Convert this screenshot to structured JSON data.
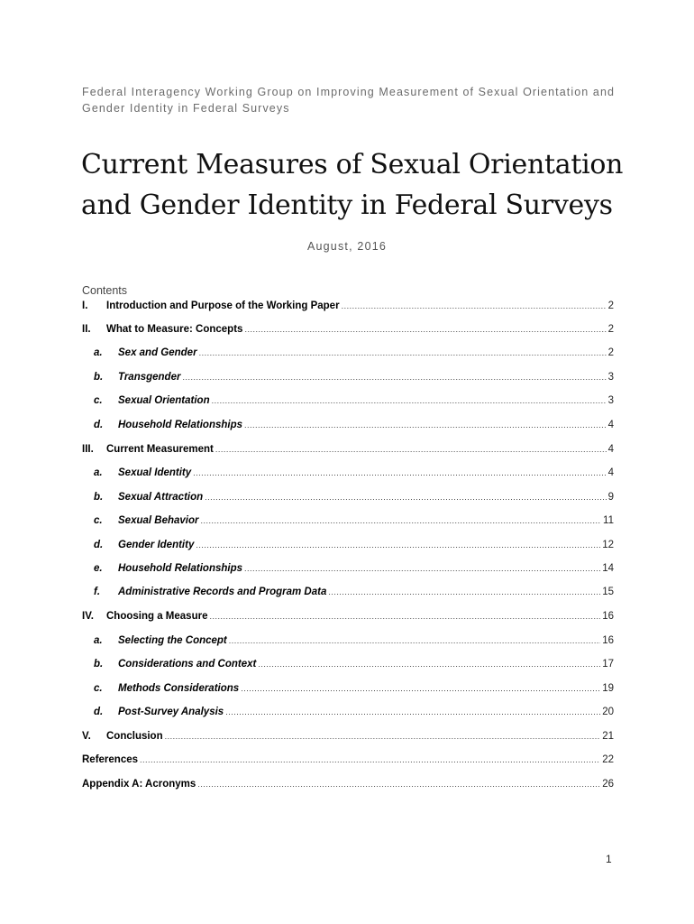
{
  "header": {
    "line1": "Federal Interagency Working Group on Improving Measurement of Sexual Orientation and",
    "line2": "Gender Identity in Federal Surveys"
  },
  "title": {
    "line1": "Current Measures of Sexual Orientation",
    "line2": "and Gender Identity in Federal Surveys"
  },
  "date": "August, 2016",
  "contents_heading": "Contents",
  "toc": [
    {
      "num": "I.",
      "label": "Introduction and Purpose of the Working Paper",
      "page": "2",
      "level": 1
    },
    {
      "num": "II.",
      "label": "What to Measure: Concepts",
      "page": "2",
      "level": 1
    },
    {
      "num": "a.",
      "label": "Sex and Gender",
      "page": "2",
      "level": 2
    },
    {
      "num": "b.",
      "label": "Transgender",
      "page": "3",
      "level": 2
    },
    {
      "num": "c.",
      "label": "Sexual Orientation",
      "page": "3",
      "level": 2
    },
    {
      "num": "d.",
      "label": "Household Relationships",
      "page": "4",
      "level": 2
    },
    {
      "num": "III.",
      "label": "Current Measurement",
      "page": "4",
      "level": 1
    },
    {
      "num": "a.",
      "label": "Sexual Identity",
      "page": "4",
      "level": 2
    },
    {
      "num": "b.",
      "label": "Sexual Attraction",
      "page": "9",
      "level": 2
    },
    {
      "num": "c.",
      "label": "Sexual Behavior",
      "page": "11",
      "level": 2
    },
    {
      "num": "d.",
      "label": "Gender Identity",
      "page": "12",
      "level": 2
    },
    {
      "num": "e.",
      "label": "Household Relationships",
      "page": "14",
      "level": 2
    },
    {
      "num": "f.",
      "label": "Administrative Records and Program Data",
      "page": "15",
      "level": 2
    },
    {
      "num": "IV.",
      "label": "Choosing a Measure",
      "page": "16",
      "level": 1
    },
    {
      "num": "a.",
      "label": "Selecting the Concept",
      "page": "16",
      "level": 2
    },
    {
      "num": "b.",
      "label": "Considerations and Context",
      "page": "17",
      "level": 2
    },
    {
      "num": "c.",
      "label": "Methods Considerations",
      "page": "19",
      "level": 2
    },
    {
      "num": "d.",
      "label": "Post-Survey Analysis",
      "page": "20",
      "level": 2
    },
    {
      "num": "V.",
      "label": "Conclusion",
      "page": "21",
      "level": 1
    },
    {
      "num": "",
      "label": "References",
      "page": "22",
      "level": 0
    },
    {
      "num": "",
      "label": "Appendix A: Acronyms",
      "page": "26",
      "level": 0
    }
  ],
  "page_number": "1"
}
